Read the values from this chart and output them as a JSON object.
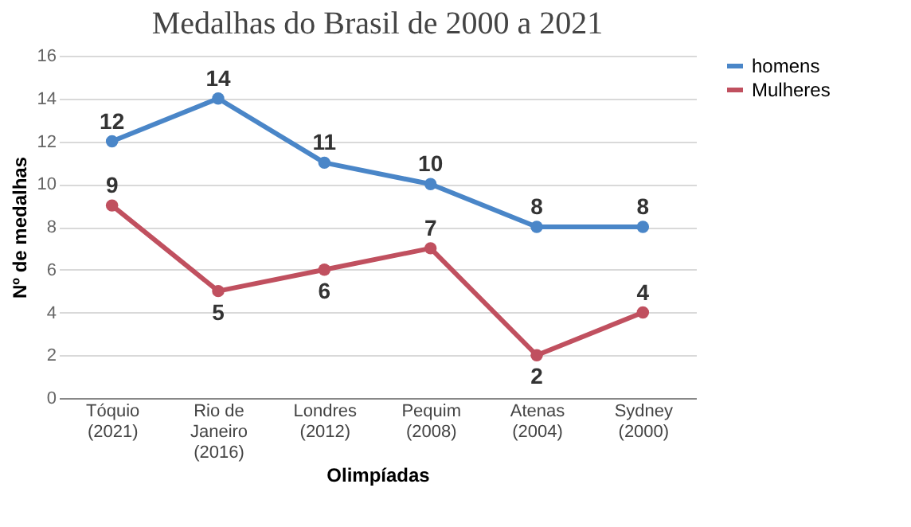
{
  "chart_data": {
    "type": "line",
    "title": "Medalhas do Brasil de 2000 a 2021",
    "xlabel": "Olimpíadas",
    "ylabel": "Nº de medalhas",
    "categories": [
      "Tóquio\n(2021)",
      "Rio de\nJaneiro\n(2016)",
      "Londres\n(2012)",
      "Pequim\n(2008)",
      "Atenas\n(2004)",
      "Sydney\n(2000)"
    ],
    "series": [
      {
        "name": "homens",
        "color": "#4a86c8",
        "values": [
          12,
          14,
          11,
          10,
          8,
          8
        ]
      },
      {
        "name": "Mulheres",
        "color": "#c0505f",
        "values": [
          9,
          5,
          6,
          7,
          2,
          4
        ]
      }
    ],
    "ylim": [
      0,
      16
    ],
    "yticks": [
      0,
      2,
      4,
      6,
      8,
      10,
      12,
      14,
      16
    ],
    "grid": "y",
    "legend": "right",
    "marker": "circle",
    "line_style": "solid",
    "data_labels": true
  }
}
